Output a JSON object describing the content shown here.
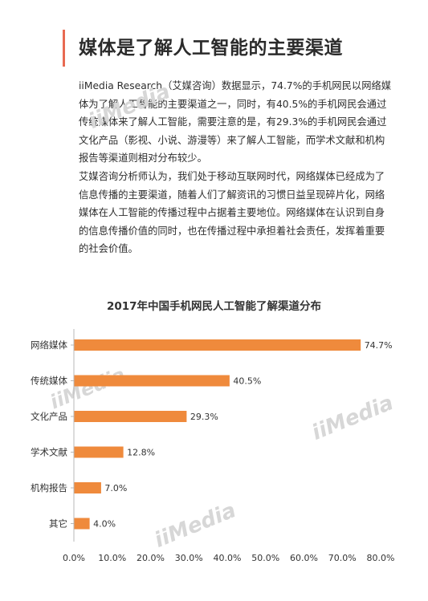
{
  "heading": "媒体是了解人工智能的主要渠道",
  "paragraphs": [
    "iiMedia Research（艾媒咨询）数据显示，74.7%的手机网民以网络媒体为了解人工智能的主要渠道之一，同时，有40.5%的手机网民会通过传统媒体来了解人工智能，需要注意的是，有29.3%的手机网民会通过文化产品（影视、小说、游漫等）来了解人工智能，而学术文献和机构报告等渠道则相对分布较少。",
    "艾媒咨询分析师认为，我们处于移动互联网时代，网络媒体已经成为了信息传播的主要渠道，随着人们了解资讯的习惯日益呈现碎片化，网络媒体在人工智能的传播过程中占据着主要地位。网络媒体在认识到自身的信息传播价值的同时，也在传播过程中承担着社会责任，发挥着重要的社会价值。"
  ],
  "watermark": "iiMedia",
  "colors": {
    "bar": "#ef8a3c",
    "accent": "#e86a52",
    "axis": "#b8b8b8"
  },
  "chart_data": {
    "type": "bar",
    "orientation": "horizontal",
    "title": "2017年中国手机网民人工智能了解渠道分布",
    "categories": [
      "网络媒体",
      "传统媒体",
      "文化产品",
      "学术文献",
      "机构报告",
      "其它"
    ],
    "values": [
      74.7,
      40.5,
      29.3,
      12.8,
      7.0,
      4.0
    ],
    "value_labels": [
      "74.7%",
      "40.5%",
      "29.3%",
      "12.8%",
      "7.0%",
      "4.0%"
    ],
    "xlim": [
      0,
      80
    ],
    "xticks": [
      "0.0%",
      "10.0%",
      "20.0%",
      "30.0%",
      "40.0%",
      "50.0%",
      "60.0%",
      "70.0%",
      "80.0%"
    ],
    "grid": false,
    "legend": "none"
  }
}
